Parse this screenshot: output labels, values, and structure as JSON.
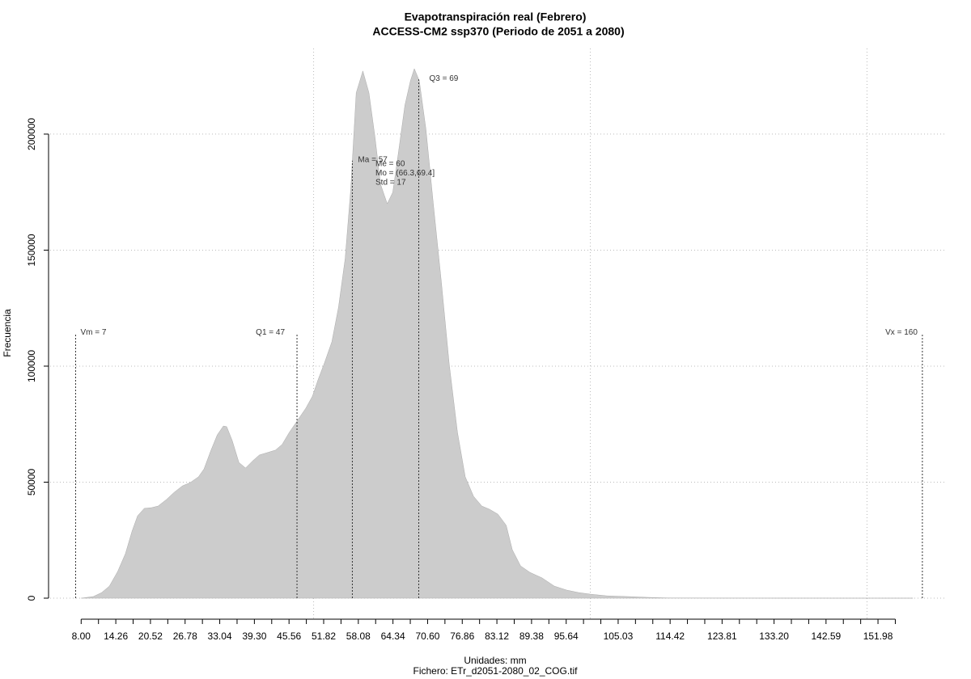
{
  "chart_data": {
    "type": "area",
    "title": "Evapotranspiración real (Febrero)",
    "subtitle": "ACCESS-CM2 ssp370 (Periodo de 2051 a 2080)",
    "x_label": "Unidades: mm",
    "caption": "Fichero: ETr_d2051-2080_02_COG.tif",
    "y_label": "Frecuencia",
    "color": "#cccccc",
    "x": [
      8,
      10.2,
      11.7,
      13.1,
      14.6,
      16.0,
      17.2,
      18.2,
      19.4,
      20.7,
      21.9,
      23.4,
      24.8,
      26.3,
      27.7,
      29.2,
      30.2,
      31.4,
      32.6,
      33.7,
      34.3,
      35.3,
      36.5,
      37.7,
      39.0,
      40.2,
      41.6,
      43.1,
      44.3,
      45.6,
      47.0,
      48.6,
      49.8,
      50.8,
      51.9,
      53.3,
      54.5,
      55.7,
      56.7,
      57.7,
      58.9,
      60.0,
      61.1,
      62.1,
      63.3,
      64.3,
      65.3,
      66.5,
      67.5,
      68.2,
      69.1,
      70.3,
      71.6,
      73.1,
      74.5,
      76.0,
      77.4,
      78.9,
      80.4,
      81.8,
      83.3,
      84.8,
      85.9,
      87.4,
      89.1,
      91.3,
      93.5,
      95.7,
      97.9,
      100.1,
      103.0,
      106.7,
      110.3,
      114,
      125,
      139.6,
      158.3
    ],
    "values": [
      0,
      700,
      2400,
      5200,
      11500,
      19200,
      28900,
      35500,
      38700,
      39000,
      39700,
      42500,
      45600,
      48400,
      49800,
      52300,
      55700,
      63400,
      70400,
      74200,
      73900,
      67900,
      58500,
      56100,
      59200,
      61700,
      62700,
      63800,
      66200,
      71400,
      76300,
      81900,
      87100,
      94100,
      101000,
      110500,
      125400,
      146300,
      176000,
      217800,
      227200,
      217800,
      198600,
      178400,
      170000,
      174900,
      191600,
      212500,
      223000,
      228200,
      223000,
      202100,
      170700,
      135900,
      101000,
      71400,
      52300,
      43900,
      39700,
      38300,
      36200,
      31400,
      20900,
      13900,
      11100,
      8700,
      5200,
      3500,
      2400,
      1700,
      1000,
      700,
      350,
      100,
      30,
      10,
      0
    ],
    "xlim": [
      2.4,
      164.4
    ],
    "ylim": [
      -9750,
      236900
    ],
    "yticks": [
      0,
      50000,
      100000,
      150000,
      200000
    ],
    "xticks": [
      {
        "value": 8,
        "label": "8.00"
      },
      {
        "value": 14.26,
        "label": "14.26"
      },
      {
        "value": 20.52,
        "label": "20.52"
      },
      {
        "value": 26.78,
        "label": "26.78"
      },
      {
        "value": 33.04,
        "label": "33.04"
      },
      {
        "value": 39.3,
        "label": "39.30"
      },
      {
        "value": 45.56,
        "label": "45.56"
      },
      {
        "value": 51.82,
        "label": "51.82"
      },
      {
        "value": 58.08,
        "label": "58.08"
      },
      {
        "value": 64.34,
        "label": "64.34"
      },
      {
        "value": 70.6,
        "label": "70.60"
      },
      {
        "value": 76.86,
        "label": "76.86"
      },
      {
        "value": 83.12,
        "label": "83.12"
      },
      {
        "value": 89.38,
        "label": "89.38"
      },
      {
        "value": 95.64,
        "label": "95.64"
      },
      {
        "value": 105.03,
        "label": "105.03"
      },
      {
        "value": 114.42,
        "label": "114.42"
      },
      {
        "value": 123.81,
        "label": "123.81"
      },
      {
        "value": 133.2,
        "label": "133.20"
      },
      {
        "value": 142.59,
        "label": "142.59"
      },
      {
        "value": 151.98,
        "label": "151.98"
      }
    ],
    "minor_xticks": [
      11.13,
      17.39,
      23.65,
      29.91,
      36.17,
      42.43,
      48.69,
      54.95,
      61.21,
      67.47,
      73.73,
      79.99,
      86.25,
      92.51,
      98.77,
      101.9,
      108.16,
      111.29,
      117.55,
      120.68,
      126.94,
      130.07,
      136.33,
      139.46,
      145.72,
      148.85,
      155.11
    ],
    "xgrid": [
      50,
      100,
      150
    ],
    "grid": true,
    "reference_lines": [
      {
        "label": "Vm = 7",
        "value": 7
      },
      {
        "label": "Q1 = 47",
        "value": 47
      },
      {
        "label": "Ma = 57",
        "value": 57
      },
      {
        "label": "Q3 = 69",
        "value": 69
      },
      {
        "label": "Vx = 160",
        "value": 160
      }
    ],
    "stats_text": [
      "Me = 60",
      "Mo = (66.3,69.4]",
      "Std = 17"
    ]
  }
}
